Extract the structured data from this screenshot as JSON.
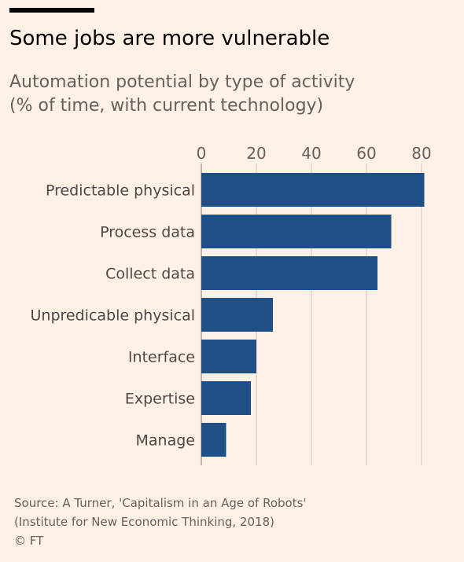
{
  "title": "Some jobs are more vulnerable",
  "subtitle": {
    "line1": "Automation potential by type of activity",
    "line2": "(% of time, with current technology)"
  },
  "colors": {
    "background": "#fff1e5",
    "bar": "#1f5085",
    "grid": "#d7cec5",
    "rule": "#000000"
  },
  "chart_data": {
    "type": "bar",
    "orientation": "horizontal",
    "categories": [
      "Predictable physical",
      "Process data",
      "Collect data",
      "Unpredicable physical",
      "Interface",
      "Expertise",
      "Manage"
    ],
    "values": [
      81,
      69,
      64,
      26,
      20,
      18,
      9
    ],
    "xlim": [
      0,
      80
    ],
    "xticks": [
      "0",
      "20",
      "40",
      "60",
      "80"
    ],
    "tick_values": [
      0,
      20,
      40,
      60,
      80
    ],
    "grid": true,
    "xlabel": "",
    "ylabel": ""
  },
  "footer": {
    "source_line1": "Source: A Turner, 'Capitalism in an Age of Robots'",
    "source_line2": "(Institute for New Economic Thinking, 2018)",
    "copyright": "© FT"
  }
}
